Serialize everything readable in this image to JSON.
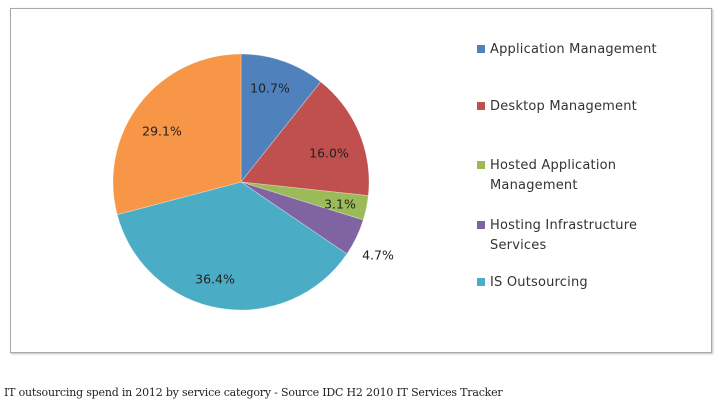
{
  "chart_data": {
    "type": "pie",
    "title": "",
    "categories": [
      "Application Management",
      "Desktop Management",
      "Hosted Application Management",
      "Hosting Infrastructure Services",
      "IS Outsourcing",
      ""
    ],
    "values": [
      10.7,
      16.0,
      3.1,
      4.7,
      36.4,
      29.1
    ],
    "labels": [
      "10.7%",
      "16.0%",
      "3.1%",
      "4.7%",
      "36.4%",
      "29.1%"
    ],
    "colors": [
      "#4F81BD",
      "#C0504D",
      "#9BBB59",
      "#8064A2",
      "#4BACC6",
      "#F79646"
    ],
    "start_angle": "12 o'clock, clockwise",
    "legend_position": "right",
    "legend": [
      {
        "label": "Application Management",
        "color": "#4F81BD"
      },
      {
        "label": "Desktop Management",
        "color": "#C0504D"
      },
      {
        "label": "Hosted Application Management",
        "color": "#9BBB59"
      },
      {
        "label": "Hosting Infrastructure Services",
        "color": "#8064A2"
      },
      {
        "label": "IS Outsourcing",
        "color": "#4BACC6"
      }
    ],
    "caption": "IT outsourcing spend in 2012 by service category - Source IDC H2 2010 IT Services Tracker"
  },
  "legend": {
    "items": [
      {
        "label": "Application Management",
        "color": "#4F81BD"
      },
      {
        "label": "Desktop Management",
        "color": "#C0504D"
      },
      {
        "label": "Hosted Application Management",
        "color": "#9BBB59"
      },
      {
        "label": "Hosting Infrastructure Services",
        "color": "#8064A2"
      },
      {
        "label": "IS Outsourcing",
        "color": "#4BACC6"
      }
    ]
  },
  "slice_labels": [
    "10.7%",
    "16.0%",
    "3.1%",
    "4.7%",
    "36.4%",
    "29.1%"
  ],
  "caption": "IT outsourcing spend in 2012 by service category - Source IDC H2 2010 IT Services Tracker"
}
